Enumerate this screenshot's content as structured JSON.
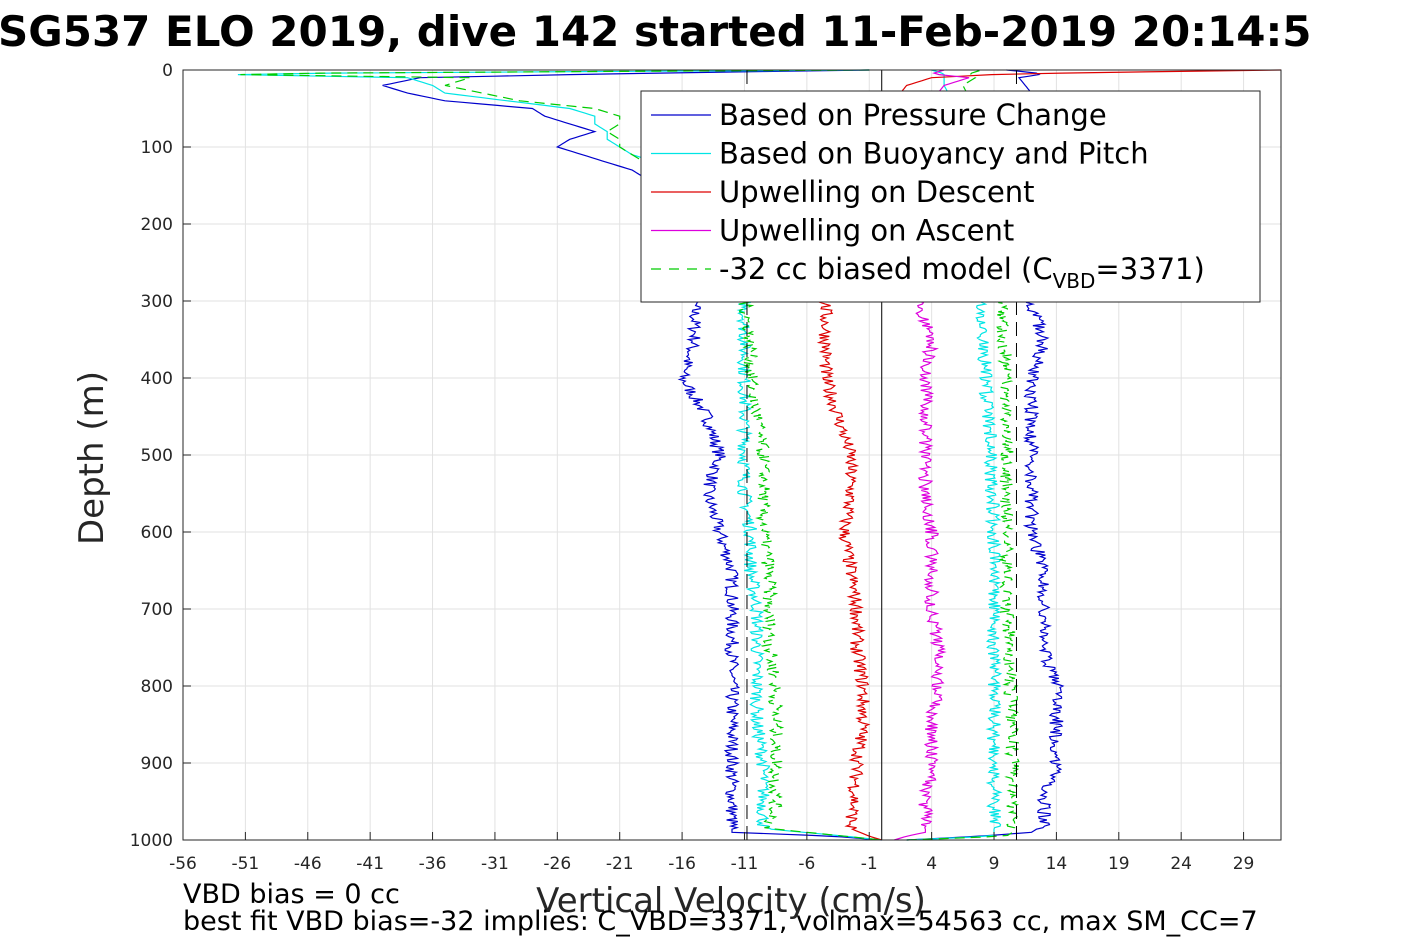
{
  "chart_data": {
    "type": "line",
    "title": "SG537 ELO 2019, dive 142 started 11-Feb-2019 20:14:5",
    "xlabel": "Vertical Velocity (cm/s)",
    "ylabel": "Depth (m)",
    "xlim": [
      -56,
      32
    ],
    "ylim": [
      0,
      1000
    ],
    "y_reversed": true,
    "grid": true,
    "x_ticks": [
      -56,
      -51,
      -46,
      -41,
      -36,
      -31,
      -26,
      -21,
      -16,
      -11,
      -6,
      -1,
      4,
      9,
      14,
      19,
      24,
      29
    ],
    "y_ticks": [
      0,
      100,
      200,
      300,
      400,
      500,
      600,
      700,
      800,
      900,
      1000
    ],
    "legend_position": "top-right",
    "legend": [
      {
        "label": "Based on Pressure Change",
        "color": "#0000cc",
        "style": "solid"
      },
      {
        "label": "Based on Buoyancy and Pitch",
        "color": "#00e5e5",
        "style": "solid"
      },
      {
        "label": "Upwelling on Descent",
        "color": "#dd0000",
        "style": "solid"
      },
      {
        "label": "Upwelling on Ascent",
        "color": "#dd00dd",
        "style": "solid"
      },
      {
        "label_prefix": "-32 cc biased model (C",
        "label_sub": "VBD",
        "label_suffix": "=3371)",
        "color": "#00cc00",
        "style": "dashed"
      }
    ],
    "vertical_lines": [
      {
        "x": 0,
        "style": "solid",
        "color": "#000000"
      },
      {
        "x": -10.8,
        "style": "dashed",
        "color": "#000000"
      },
      {
        "x": 10.8,
        "style": "dashed",
        "color": "#000000"
      }
    ],
    "series": [
      {
        "name": "Based on Pressure Change",
        "color": "#0000cc",
        "descent": {
          "depth": [
            0,
            5,
            10,
            20,
            30,
            40,
            50,
            60,
            70,
            80,
            90,
            100,
            110,
            120,
            130,
            140,
            150,
            160,
            180,
            200,
            250,
            300,
            350,
            400,
            450,
            500,
            550,
            600,
            650,
            700,
            750,
            800,
            850,
            900,
            950,
            980,
            990,
            995,
            1000
          ],
          "velocity": [
            -1,
            -22,
            -37,
            -40,
            -38,
            -35,
            -28,
            -27,
            -25,
            -23,
            -25,
            -26,
            -24,
            -22,
            -20,
            -19,
            -18,
            -17,
            -16,
            -16,
            -16,
            -15,
            -15,
            -16,
            -14,
            -13,
            -14,
            -13,
            -12,
            -12,
            -12,
            -12,
            -12,
            -12,
            -12,
            -12,
            -12,
            -4,
            0
          ]
        },
        "ascent": {
          "depth": [
            1000,
            995,
            990,
            980,
            950,
            900,
            850,
            800,
            750,
            700,
            650,
            600,
            550,
            500,
            450,
            400,
            350,
            300,
            250,
            200,
            150,
            100,
            60,
            30,
            10,
            5,
            0
          ],
          "velocity": [
            2,
            8,
            12,
            13,
            13,
            14,
            14,
            14,
            13,
            13,
            13,
            12,
            12,
            12,
            12,
            12,
            13,
            12,
            12,
            12,
            11,
            11,
            12,
            12,
            11,
            13,
            10
          ]
        }
      },
      {
        "name": "Based on Buoyancy and Pitch",
        "color": "#00e5e5",
        "descent": {
          "depth": [
            0,
            5,
            10,
            20,
            30,
            40,
            50,
            60,
            70,
            80,
            90,
            100,
            110,
            120,
            130,
            140,
            150,
            160,
            180,
            200,
            250,
            300,
            350,
            400,
            450,
            500,
            550,
            600,
            650,
            700,
            750,
            800,
            850,
            900,
            950,
            985,
            995,
            1000
          ],
          "velocity": [
            -1,
            -55,
            -38,
            -36,
            -35,
            -30,
            -25,
            -23,
            -23,
            -22,
            -22,
            -21,
            -20,
            -18,
            -17,
            -16,
            -15,
            -14,
            -13,
            -12,
            -11.5,
            -11,
            -11,
            -11,
            -11,
            -11,
            -11,
            -10.5,
            -10.5,
            -10,
            -10,
            -10,
            -10,
            -9.5,
            -9.5,
            -9.5,
            -3,
            0
          ]
        },
        "ascent": {
          "depth": [
            1000,
            995,
            990,
            950,
            900,
            850,
            800,
            750,
            700,
            650,
            600,
            550,
            500,
            450,
            400,
            350,
            300,
            250,
            200,
            150,
            100,
            50,
            20,
            5,
            0
          ],
          "velocity": [
            2,
            9,
            9,
            9,
            9,
            9,
            9,
            9,
            9,
            9,
            9,
            8.8,
            8.8,
            8.5,
            8.3,
            8.2,
            8,
            8,
            7.5,
            7,
            6.5,
            6,
            5,
            5,
            4
          ]
        }
      },
      {
        "name": "Upwelling on Descent",
        "color": "#dd0000",
        "descent": {
          "depth": [
            0,
            5,
            10,
            15,
            20,
            30,
            50,
            100,
            150,
            200,
            250,
            300,
            350,
            400,
            450,
            500,
            550,
            600,
            650,
            700,
            750,
            800,
            850,
            900,
            950,
            985,
            995,
            1000
          ],
          "velocity": [
            32,
            10,
            4,
            3,
            2,
            1.5,
            0.5,
            -1,
            -2,
            -3,
            -4,
            -4.5,
            -4.5,
            -4.5,
            -3.5,
            -2.5,
            -2.5,
            -3,
            -2.5,
            -2,
            -2,
            -1.5,
            -1.5,
            -2,
            -2.2,
            -2.5,
            -1,
            0
          ]
        }
      },
      {
        "name": "Upwelling on Ascent",
        "color": "#dd00dd",
        "ascent": {
          "depth": [
            1000,
            995,
            990,
            950,
            900,
            850,
            800,
            750,
            700,
            650,
            600,
            550,
            500,
            450,
            400,
            350,
            300,
            250,
            200,
            150,
            100,
            50,
            20,
            10,
            5,
            0
          ],
          "velocity": [
            1,
            2,
            3.5,
            3.5,
            4,
            4,
            4.5,
            4.5,
            4,
            4,
            4,
            3.5,
            3.5,
            3.5,
            3.5,
            4,
            3,
            3,
            3,
            3,
            3,
            3.5,
            5,
            7,
            4,
            5
          ]
        }
      },
      {
        "name": "-32 cc biased model (CVBD=3371)",
        "color": "#00cc00",
        "dashed": true,
        "descent": {
          "depth": [
            0,
            5,
            10,
            20,
            30,
            40,
            50,
            60,
            70,
            80,
            90,
            100,
            110,
            120,
            130,
            150,
            180,
            200,
            250,
            300,
            350,
            400,
            450,
            500,
            550,
            600,
            650,
            700,
            750,
            800,
            850,
            900,
            950,
            985,
            995,
            1000
          ],
          "velocity": [
            -1,
            -56,
            -33,
            -35,
            -32,
            -29,
            -23,
            -21,
            -21,
            -22,
            -21,
            -21,
            -20,
            -19,
            -18,
            -16,
            -14,
            -13,
            -12,
            -11,
            -10.5,
            -10.5,
            -10,
            -9.5,
            -9.5,
            -9.5,
            -9,
            -9,
            -9,
            -8.5,
            -8.5,
            -8.5,
            -8.5,
            -9,
            -3,
            0
          ]
        },
        "ascent": {
          "depth": [
            1000,
            995,
            990,
            950,
            900,
            850,
            800,
            750,
            700,
            650,
            600,
            550,
            500,
            450,
            400,
            350,
            300,
            250,
            200,
            150,
            100,
            50,
            20,
            10,
            5,
            0
          ],
          "velocity": [
            2,
            10,
            10.5,
            10.5,
            10.5,
            10.5,
            10.3,
            10.3,
            10,
            10,
            10,
            10,
            10,
            10,
            10,
            9.8,
            9.5,
            9.3,
            9,
            8.5,
            8,
            7.5,
            6.5,
            7.5,
            7,
            8
          ]
        }
      }
    ]
  },
  "notes": {
    "vbd_bias": "VBD bias = 0 cc",
    "best_fit": "best fit VBD bias=-32 implies: C_VBD=3371, volmax=54563 cc, max SM_CC=7"
  }
}
